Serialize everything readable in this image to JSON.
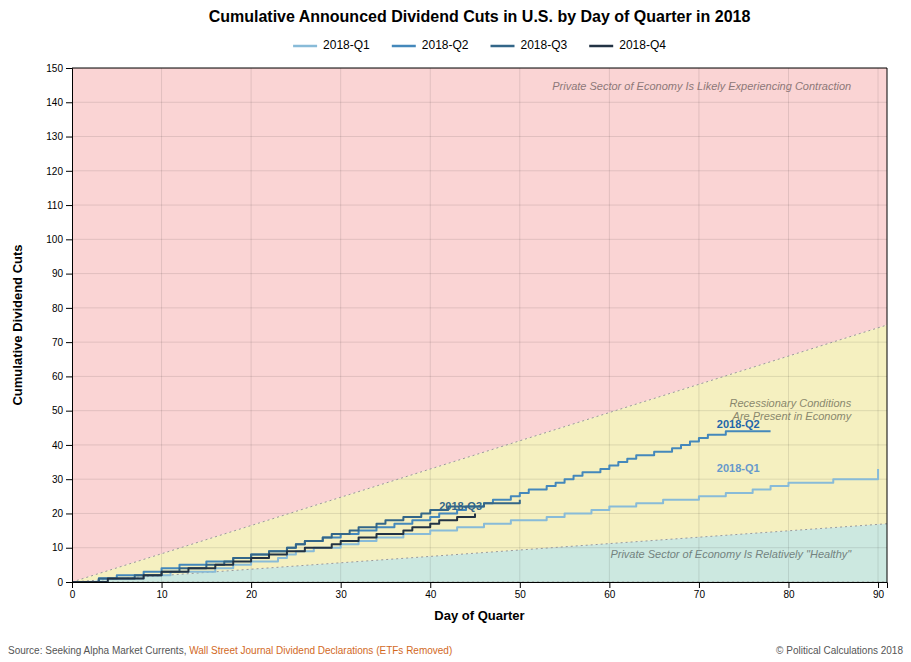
{
  "chart_data": {
    "type": "step",
    "title": "Cumulative Announced Dividend Cuts in U.S. by Day of Quarter in 2018",
    "xlabel": "Day of Quarter",
    "ylabel": "Cumulative Dividend Cuts",
    "xlim": [
      0,
      91
    ],
    "ylim": [
      0,
      150
    ],
    "xticks": [
      0,
      10,
      20,
      30,
      40,
      50,
      60,
      70,
      80,
      90
    ],
    "yticks": [
      0,
      10,
      20,
      30,
      40,
      50,
      60,
      70,
      80,
      90,
      100,
      110,
      120,
      130,
      140,
      150
    ],
    "grid": true,
    "legend": "top",
    "series": [
      {
        "name": "2018-Q1",
        "color": "#88bbd8",
        "x": [
          0,
          1,
          2,
          3,
          4,
          5,
          6,
          7,
          8,
          9,
          10,
          11,
          12,
          13,
          14,
          15,
          16,
          17,
          18,
          19,
          20,
          21,
          22,
          23,
          24,
          25,
          26,
          27,
          28,
          29,
          30,
          31,
          32,
          33,
          34,
          35,
          36,
          37,
          38,
          39,
          40,
          41,
          42,
          43,
          44,
          45,
          46,
          47,
          48,
          49,
          50,
          51,
          52,
          53,
          54,
          55,
          56,
          57,
          58,
          59,
          60,
          61,
          62,
          63,
          64,
          65,
          66,
          67,
          68,
          69,
          70,
          71,
          72,
          73,
          74,
          75,
          76,
          77,
          78,
          79,
          80,
          81,
          82,
          83,
          84,
          85,
          86,
          87,
          88,
          89,
          90
        ],
        "values": [
          0,
          0,
          0,
          1,
          1,
          1,
          1,
          1,
          2,
          2,
          2,
          3,
          3,
          3,
          3,
          3,
          4,
          4,
          5,
          5,
          6,
          6,
          6,
          7,
          8,
          9,
          9,
          10,
          10,
          10,
          11,
          11,
          12,
          12,
          13,
          13,
          13,
          14,
          14,
          14,
          15,
          15,
          15,
          16,
          16,
          16,
          17,
          17,
          17,
          18,
          18,
          18,
          18,
          19,
          19,
          20,
          20,
          20,
          21,
          21,
          22,
          22,
          22,
          23,
          23,
          23,
          24,
          24,
          24,
          24,
          25,
          25,
          25,
          26,
          26,
          26,
          27,
          27,
          28,
          28,
          29,
          29,
          29,
          29,
          29,
          30,
          30,
          30,
          30,
          30,
          33
        ]
      },
      {
        "name": "2018-Q2",
        "color": "#4488bb",
        "x": [
          0,
          1,
          2,
          3,
          4,
          5,
          6,
          7,
          8,
          9,
          10,
          11,
          12,
          13,
          14,
          15,
          16,
          17,
          18,
          19,
          20,
          21,
          22,
          23,
          24,
          25,
          26,
          27,
          28,
          29,
          30,
          31,
          32,
          33,
          34,
          35,
          36,
          37,
          38,
          39,
          40,
          41,
          42,
          43,
          44,
          45,
          46,
          47,
          48,
          49,
          50,
          51,
          52,
          53,
          54,
          55,
          56,
          57,
          58,
          59,
          60,
          61,
          62,
          63,
          64,
          65,
          66,
          67,
          68,
          69,
          70,
          71,
          72,
          73,
          74,
          75,
          76,
          77,
          78
        ],
        "values": [
          0,
          0,
          0,
          1,
          1,
          2,
          2,
          2,
          3,
          3,
          4,
          4,
          5,
          5,
          5,
          6,
          6,
          6,
          7,
          7,
          8,
          8,
          9,
          9,
          10,
          11,
          12,
          12,
          13,
          13,
          14,
          14,
          15,
          15,
          16,
          16,
          17,
          17,
          18,
          18,
          19,
          20,
          20,
          21,
          22,
          22,
          23,
          24,
          24,
          25,
          26,
          27,
          27,
          28,
          29,
          30,
          31,
          32,
          32,
          33,
          34,
          35,
          36,
          37,
          37,
          38,
          38,
          39,
          40,
          41,
          42,
          43,
          43,
          44,
          44,
          44,
          44,
          44,
          44
        ]
      },
      {
        "name": "2018-Q3",
        "color": "#336688",
        "x": [
          0,
          1,
          2,
          3,
          4,
          5,
          6,
          7,
          8,
          9,
          10,
          11,
          12,
          13,
          14,
          15,
          16,
          17,
          18,
          19,
          20,
          21,
          22,
          23,
          24,
          25,
          26,
          27,
          28,
          29,
          30,
          31,
          32,
          33,
          34,
          35,
          36,
          37,
          38,
          39,
          40,
          41,
          42,
          43,
          44,
          45,
          46,
          47,
          48,
          49,
          50
        ],
        "values": [
          0,
          0,
          0,
          1,
          1,
          1,
          1,
          2,
          2,
          2,
          3,
          3,
          4,
          4,
          4,
          5,
          5,
          6,
          7,
          7,
          8,
          8,
          9,
          9,
          10,
          11,
          12,
          12,
          13,
          14,
          14,
          15,
          16,
          16,
          17,
          18,
          18,
          19,
          19,
          20,
          21,
          21,
          22,
          22,
          22,
          22,
          23,
          23,
          23,
          23,
          24
        ]
      },
      {
        "name": "2018-Q4",
        "color": "#223344",
        "x": [
          0,
          1,
          2,
          3,
          4,
          5,
          6,
          7,
          8,
          9,
          10,
          11,
          12,
          13,
          14,
          15,
          16,
          17,
          18,
          19,
          20,
          21,
          22,
          23,
          24,
          25,
          26,
          27,
          28,
          29,
          30,
          31,
          32,
          33,
          34,
          35,
          36,
          37,
          38,
          39,
          40,
          41,
          42,
          43,
          44,
          45
        ],
        "values": [
          0,
          0,
          0,
          0,
          1,
          1,
          1,
          1,
          2,
          2,
          3,
          3,
          3,
          4,
          4,
          4,
          5,
          5,
          6,
          6,
          7,
          7,
          8,
          8,
          9,
          9,
          10,
          10,
          10,
          11,
          12,
          12,
          13,
          13,
          14,
          14,
          14,
          15,
          16,
          16,
          17,
          18,
          18,
          19,
          19,
          20
        ]
      }
    ],
    "zones": [
      {
        "label": "Private Sector of Economy Is Likely Experiencing Contraction",
        "color": "#fad4d4",
        "x": [
          0,
          91
        ],
        "lower": [
          0,
          75
        ],
        "upper": [
          150,
          150
        ],
        "label_x": 87,
        "label_y": 147
      },
      {
        "label": "Recessionary Conditions\nAre Present in Economy",
        "color": "#f5f0c0",
        "x": [
          0,
          91
        ],
        "lower": [
          0,
          17
        ],
        "upper": [
          0,
          75
        ],
        "label_x": 87,
        "label_y": 50
      },
      {
        "label": "Private Sector of Economy Is Relatively \"Healthy\"",
        "color": "#cce8e0",
        "x": [
          0,
          91
        ],
        "lower": [
          0,
          0
        ],
        "upper": [
          0,
          17
        ],
        "label_x": 87,
        "label_y": 8
      }
    ],
    "annotations": [
      {
        "text": "2018-Q2",
        "x": 72,
        "y": 45,
        "color": "#2266aa"
      },
      {
        "text": "2018-Q1",
        "x": 72,
        "y": 32,
        "color": "#6699cc"
      },
      {
        "text": "2018-Q3",
        "x": 41,
        "y": 21,
        "color": "#336688"
      }
    ],
    "source": [
      "Source: Seeking Alpha Market Currents, ",
      "Wall Street Journal Dividend Declarations (ETFs Removed)"
    ],
    "copyright": "© Political Calculations 2018"
  }
}
